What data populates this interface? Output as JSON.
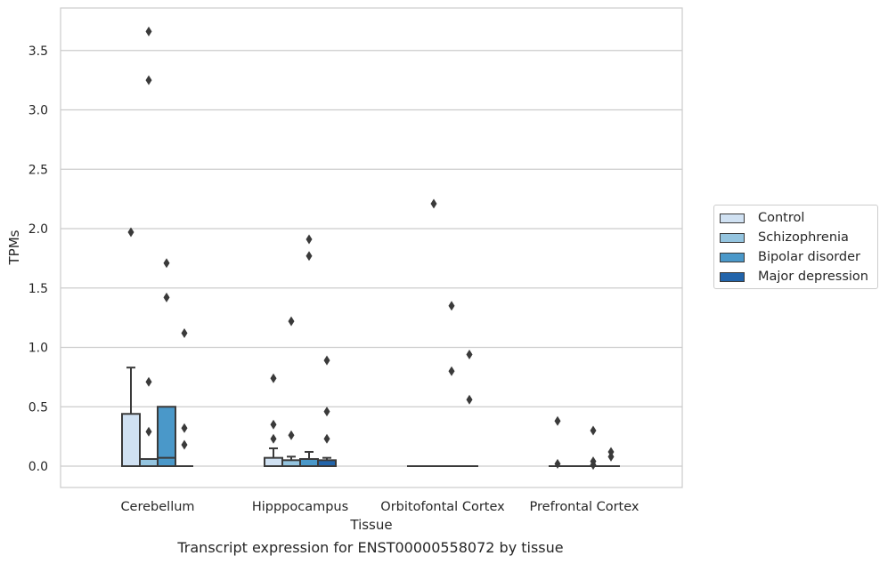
{
  "chart_data": {
    "type": "boxplot",
    "xlabel": "Tissue",
    "ylabel": "TPMs",
    "ylim": [
      -0.18,
      3.85
    ],
    "yticks": [
      0.0,
      0.5,
      1.0,
      1.5,
      2.0,
      2.5,
      3.0,
      3.5
    ],
    "ytick_labels": [
      "0.0",
      "0.5",
      "1.0",
      "1.5",
      "2.0",
      "2.5",
      "3.0",
      "3.5"
    ],
    "grid": "horizontal",
    "legend_position": "right",
    "categories": [
      "Cerebellum",
      "Hipppocampus",
      "Orbitofontal Cortex",
      "Prefrontal Cortex"
    ],
    "series": [
      {
        "name": "Control",
        "color": "#d0e1f2",
        "boxes": [
          {
            "q1": 0.0,
            "median": 0.0,
            "q3": 0.44,
            "whisker_low": 0.0,
            "whisker_high": 0.83,
            "outliers": [
              1.97
            ]
          },
          {
            "q1": 0.0,
            "median": 0.0,
            "q3": 0.07,
            "whisker_low": 0.0,
            "whisker_high": 0.15,
            "outliers": [
              0.23,
              0.35,
              0.74
            ]
          },
          {
            "q1": 0.0,
            "median": 0.0,
            "q3": 0.0,
            "whisker_low": 0.0,
            "whisker_high": 0.0,
            "outliers": []
          },
          {
            "q1": 0.0,
            "median": 0.0,
            "q3": 0.0,
            "whisker_low": 0.0,
            "whisker_high": 0.0,
            "outliers": [
              0.02,
              0.38
            ]
          }
        ]
      },
      {
        "name": "Schizophrenia",
        "color": "#94c4df",
        "boxes": [
          {
            "q1": 0.0,
            "median": 0.0,
            "q3": 0.06,
            "whisker_low": 0.0,
            "whisker_high": 0.06,
            "outliers": [
              0.29,
              0.71,
              3.25,
              3.66
            ]
          },
          {
            "q1": 0.0,
            "median": 0.0,
            "q3": 0.05,
            "whisker_low": 0.0,
            "whisker_high": 0.08,
            "outliers": [
              0.26,
              1.22
            ]
          },
          {
            "q1": 0.0,
            "median": 0.0,
            "q3": 0.0,
            "whisker_low": 0.0,
            "whisker_high": 0.0,
            "outliers": [
              2.21
            ]
          },
          {
            "q1": 0.0,
            "median": 0.0,
            "q3": 0.0,
            "whisker_low": 0.0,
            "whisker_high": 0.0,
            "outliers": []
          }
        ]
      },
      {
        "name": "Bipolar disorder",
        "color": "#4a98c9",
        "boxes": [
          {
            "q1": 0.0,
            "median": 0.07,
            "q3": 0.5,
            "whisker_low": 0.0,
            "whisker_high": 0.5,
            "outliers": [
              1.42,
              1.71
            ]
          },
          {
            "q1": 0.0,
            "median": 0.0,
            "q3": 0.06,
            "whisker_low": 0.0,
            "whisker_high": 0.12,
            "outliers": [
              1.77,
              1.91
            ]
          },
          {
            "q1": 0.0,
            "median": 0.0,
            "q3": 0.0,
            "whisker_low": 0.0,
            "whisker_high": 0.0,
            "outliers": [
              0.8,
              1.35
            ]
          },
          {
            "q1": 0.0,
            "median": 0.0,
            "q3": 0.0,
            "whisker_low": 0.0,
            "whisker_high": 0.0,
            "outliers": [
              0.01,
              0.04,
              0.3
            ]
          }
        ]
      },
      {
        "name": "Major depression",
        "color": "#2264aa",
        "boxes": [
          {
            "q1": 0.0,
            "median": 0.0,
            "q3": 0.0,
            "whisker_low": 0.0,
            "whisker_high": 0.0,
            "outliers": [
              0.18,
              0.32,
              1.12
            ]
          },
          {
            "q1": 0.0,
            "median": 0.0,
            "q3": 0.05,
            "whisker_low": 0.0,
            "whisker_high": 0.07,
            "outliers": [
              0.23,
              0.46,
              0.89
            ]
          },
          {
            "q1": 0.0,
            "median": 0.0,
            "q3": 0.0,
            "whisker_low": 0.0,
            "whisker_high": 0.0,
            "outliers": [
              0.56,
              0.94
            ]
          },
          {
            "q1": 0.0,
            "median": 0.0,
            "q3": 0.0,
            "whisker_low": 0.0,
            "whisker_high": 0.0,
            "outliers": [
              0.08,
              0.12
            ]
          }
        ]
      }
    ]
  },
  "caption": "Transcript expression for ENST00000558072 by tissue",
  "colors": {
    "grid": "#cccccc",
    "frame": "#cccccc",
    "box_edge": "#3a3a3a",
    "text": "#262626"
  }
}
